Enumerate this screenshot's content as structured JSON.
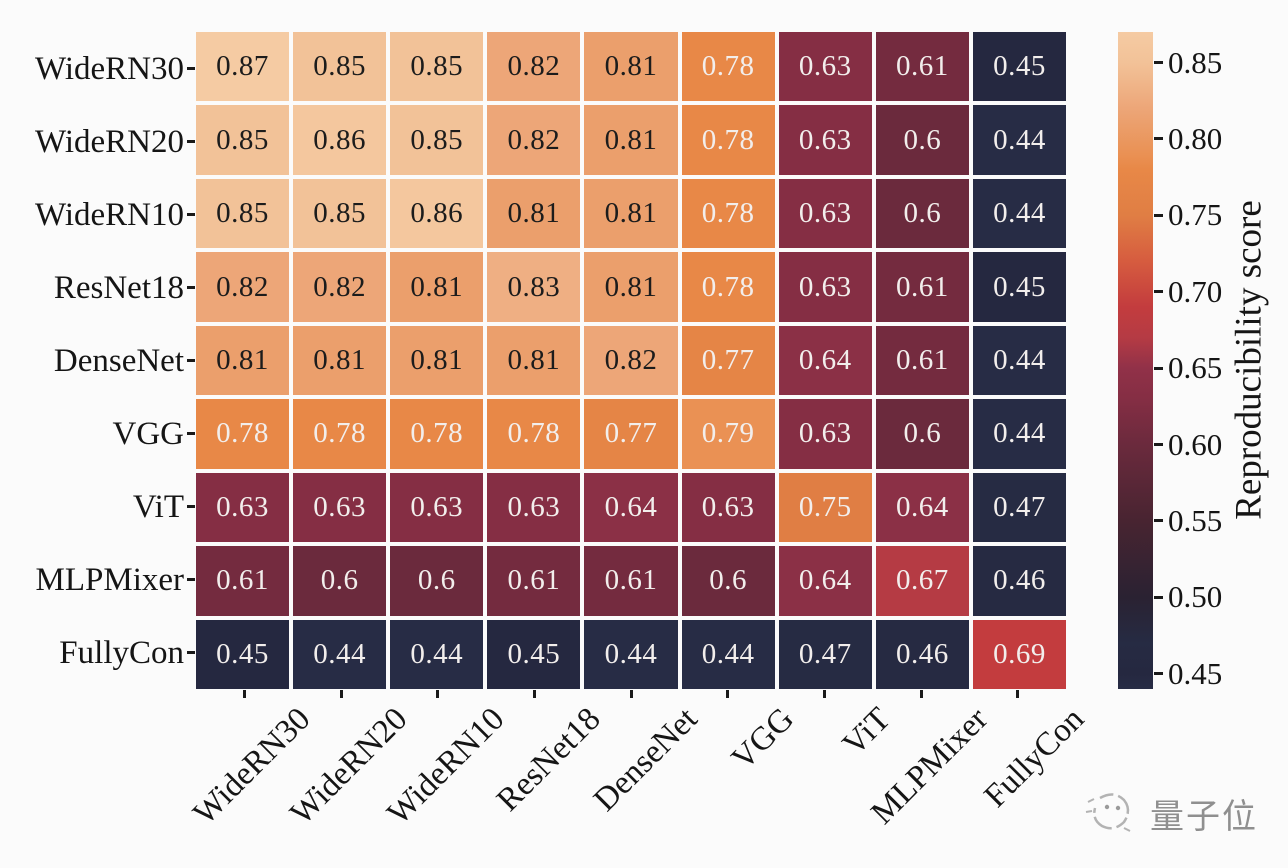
{
  "chart_data": {
    "type": "heatmap",
    "categories_x": [
      "WideRN30",
      "WideRN20",
      "WideRN10",
      "ResNet18",
      "DenseNet",
      "VGG",
      "ViT",
      "MLPMixer",
      "FullyCon"
    ],
    "categories_y": [
      "WideRN30",
      "WideRN20",
      "WideRN10",
      "ResNet18",
      "DenseNet",
      "VGG",
      "ViT",
      "MLPMixer",
      "FullyCon"
    ],
    "matrix": [
      [
        0.87,
        0.85,
        0.85,
        0.82,
        0.81,
        0.78,
        0.63,
        0.61,
        0.45
      ],
      [
        0.85,
        0.86,
        0.85,
        0.82,
        0.81,
        0.78,
        0.63,
        0.6,
        0.44
      ],
      [
        0.85,
        0.85,
        0.86,
        0.81,
        0.81,
        0.78,
        0.63,
        0.6,
        0.44
      ],
      [
        0.82,
        0.82,
        0.81,
        0.83,
        0.81,
        0.78,
        0.63,
        0.61,
        0.45
      ],
      [
        0.81,
        0.81,
        0.81,
        0.81,
        0.82,
        0.77,
        0.64,
        0.61,
        0.44
      ],
      [
        0.78,
        0.78,
        0.78,
        0.78,
        0.77,
        0.79,
        0.63,
        0.6,
        0.44
      ],
      [
        0.63,
        0.63,
        0.63,
        0.63,
        0.64,
        0.63,
        0.75,
        0.64,
        0.47
      ],
      [
        0.61,
        0.6,
        0.6,
        0.61,
        0.61,
        0.6,
        0.64,
        0.67,
        0.46
      ],
      [
        0.45,
        0.44,
        0.44,
        0.45,
        0.44,
        0.44,
        0.47,
        0.46,
        0.69
      ]
    ],
    "colorbar": {
      "label": "Reproducibility score",
      "ticks": [
        0.85,
        0.8,
        0.75,
        0.7,
        0.65,
        0.6,
        0.55,
        0.5,
        0.45
      ],
      "vmin": 0.44,
      "vmax": 0.87
    },
    "colormap_stops": [
      {
        "v": 0.44,
        "c": "#272c45"
      },
      {
        "v": 0.45,
        "c": "#252840"
      },
      {
        "v": 0.47,
        "c": "#262b43"
      },
      {
        "v": 0.5,
        "c": "#2a2232"
      },
      {
        "v": 0.55,
        "c": "#482431"
      },
      {
        "v": 0.6,
        "c": "#6b2a3d"
      },
      {
        "v": 0.63,
        "c": "#852e44"
      },
      {
        "v": 0.65,
        "c": "#913148"
      },
      {
        "v": 0.67,
        "c": "#b53b44"
      },
      {
        "v": 0.69,
        "c": "#c33c3e"
      },
      {
        "v": 0.72,
        "c": "#d65c3f"
      },
      {
        "v": 0.75,
        "c": "#e07e44"
      },
      {
        "v": 0.78,
        "c": "#e88847"
      },
      {
        "v": 0.79,
        "c": "#ea9154"
      },
      {
        "v": 0.81,
        "c": "#eb9f6c"
      },
      {
        "v": 0.82,
        "c": "#eda678"
      },
      {
        "v": 0.85,
        "c": "#f2c298"
      },
      {
        "v": 0.87,
        "c": "#f5cba3"
      }
    ],
    "text_colors": {
      "light_cell_text": "#1c1c1c",
      "dark_cell_text": "#f2eeec",
      "threshold": 0.795
    }
  },
  "watermark": {
    "text": "量子位"
  }
}
